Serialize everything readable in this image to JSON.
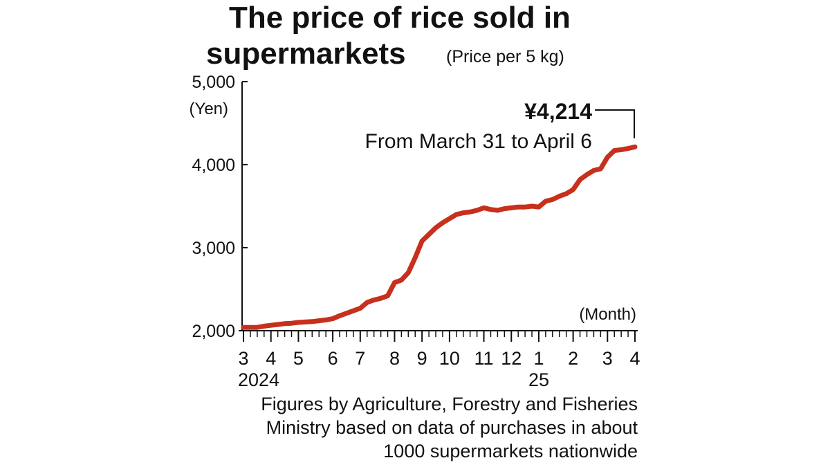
{
  "chart_data": {
    "type": "line",
    "title": [
      "The price of rice sold in",
      "supermarkets"
    ],
    "subtitle": "(Price per 5 kg)",
    "y_label": "(Yen)",
    "x_label": "(Month)",
    "x": [
      0,
      1,
      2,
      3,
      4,
      5,
      6,
      7,
      8,
      9,
      10,
      11,
      12,
      13,
      14,
      15,
      16,
      17,
      18,
      19,
      20,
      21,
      22,
      23,
      24,
      25,
      26,
      27,
      28,
      29,
      30,
      31,
      32,
      33,
      34,
      35,
      36,
      37,
      38,
      39,
      40,
      41,
      42,
      43,
      44,
      45,
      46,
      47,
      48,
      49,
      50,
      51,
      52,
      53,
      54,
      55,
      56,
      57
    ],
    "series": [
      {
        "color": "#c7301c",
        "values": [
          2040,
          2040,
          2040,
          2055,
          2065,
          2075,
          2085,
          2090,
          2100,
          2105,
          2110,
          2120,
          2130,
          2145,
          2180,
          2210,
          2240,
          2270,
          2340,
          2370,
          2390,
          2420,
          2580,
          2610,
          2700,
          2880,
          3080,
          3160,
          3240,
          3300,
          3350,
          3400,
          3420,
          3430,
          3450,
          3480,
          3460,
          3450,
          3470,
          3480,
          3490,
          3490,
          3500,
          3490,
          3560,
          3580,
          3620,
          3650,
          3700,
          3820,
          3880,
          3930,
          3950,
          4090,
          4170,
          4180,
          4195,
          4214
        ]
      }
    ],
    "xlim": [
      0,
      57
    ],
    "ylim": [
      2000,
      5000
    ],
    "yticks": [
      {
        "value": 2000,
        "label": "2,000"
      },
      {
        "value": 3000,
        "label": "3,000"
      },
      {
        "value": 4000,
        "label": "4,000"
      },
      {
        "value": 5000,
        "label": "5,000"
      }
    ],
    "xticks": [
      {
        "value": 0,
        "label": "3"
      },
      {
        "value": 4,
        "label": "4"
      },
      {
        "value": 8,
        "label": "5"
      },
      {
        "value": 13,
        "label": "6"
      },
      {
        "value": 17,
        "label": "7"
      },
      {
        "value": 22,
        "label": "8"
      },
      {
        "value": 26,
        "label": "9"
      },
      {
        "value": 30,
        "label": "10"
      },
      {
        "value": 35,
        "label": "11"
      },
      {
        "value": 39,
        "label": "12"
      },
      {
        "value": 43,
        "label": "1"
      },
      {
        "value": 48,
        "label": "2"
      },
      {
        "value": 53,
        "label": "3"
      },
      {
        "value": 57,
        "label": "4"
      }
    ],
    "year_labels": [
      {
        "value": 0,
        "label": "2024"
      },
      {
        "value": 43,
        "label": "25"
      }
    ],
    "annotation": {
      "value_label": "¥4,214",
      "text": "From March 31 to April 6"
    },
    "source": [
      "Figures by Agriculture, Forestry and Fisheries",
      "Ministry based on data of purchases in about",
      "1000 supermarkets nationwide"
    ]
  }
}
